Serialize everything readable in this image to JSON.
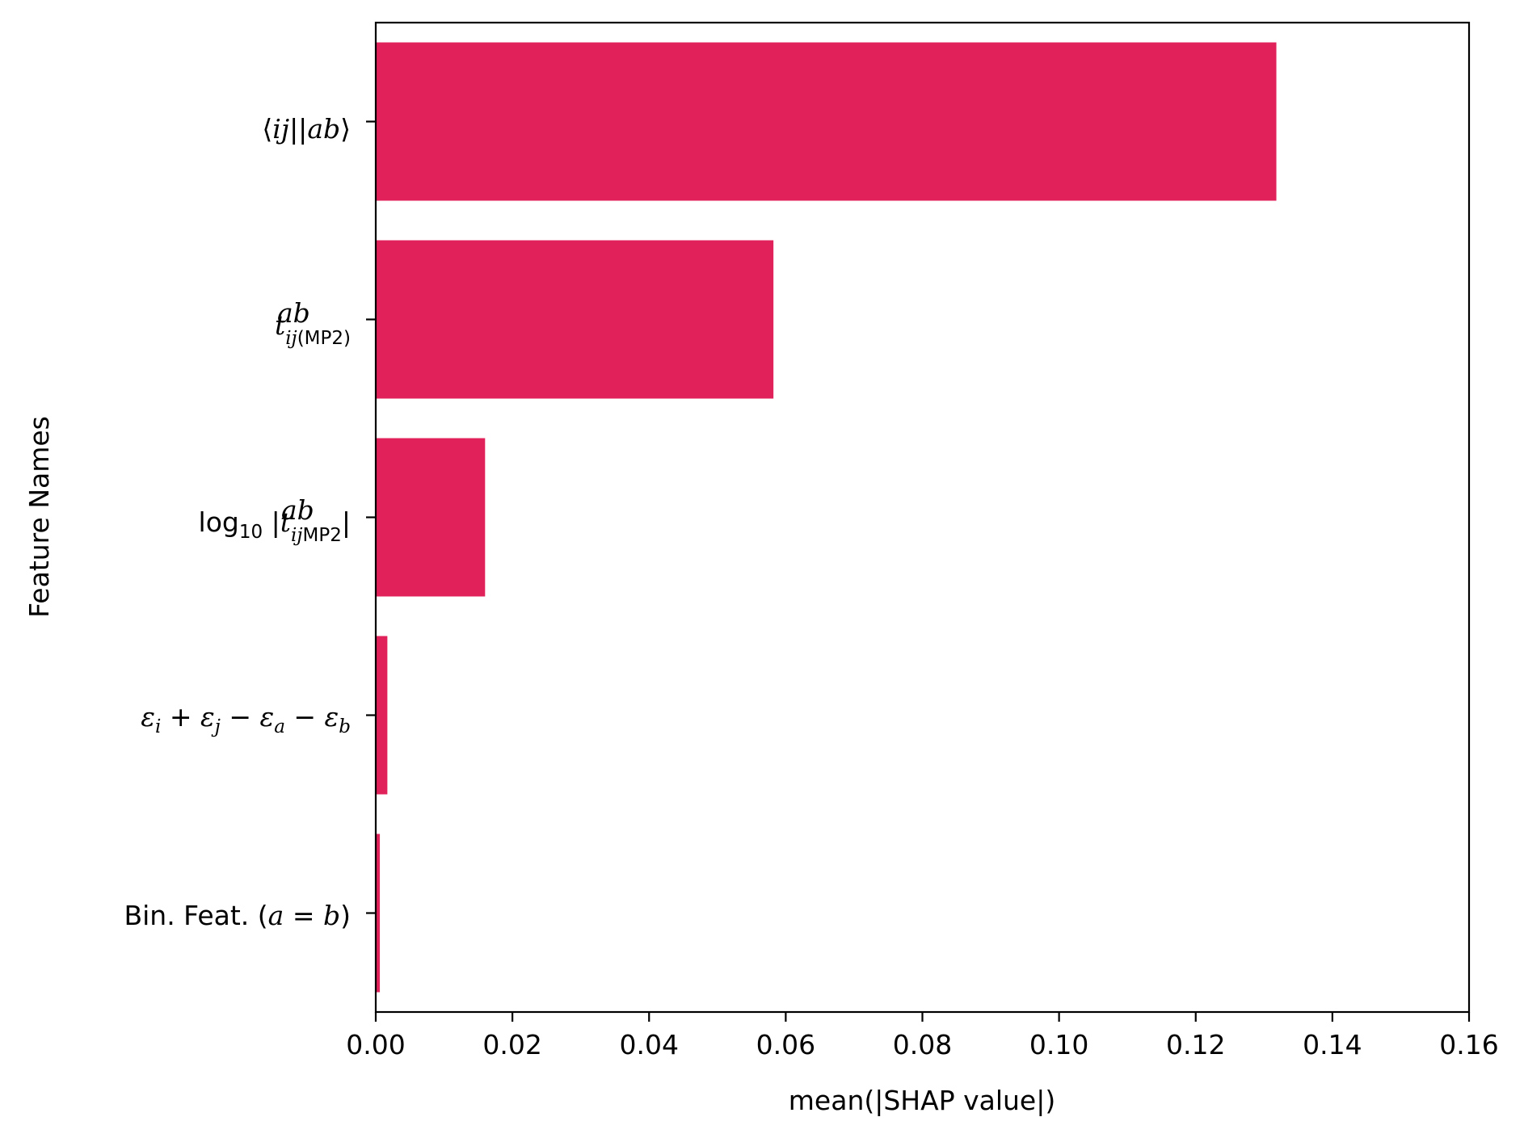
{
  "chart_data": {
    "type": "bar",
    "orientation": "horizontal",
    "categories": [
      "⟨ij||ab⟩",
      "t^{ab}_{ij(MP2)}",
      "log10 |t^{ab}_{ijMP2}|",
      "ε_i + ε_j − ε_a − ε_b",
      "Bin. Feat. (a = b)"
    ],
    "values": [
      0.1318,
      0.0582,
      0.016,
      0.0017,
      0.0006
    ],
    "xlabel": "mean(|SHAP value|)",
    "ylabel": "Feature Names",
    "xlim": [
      0.0,
      0.16
    ],
    "xticks": [
      "0.00",
      "0.02",
      "0.04",
      "0.06",
      "0.08",
      "0.10",
      "0.12",
      "0.14",
      "0.16"
    ],
    "grid": false,
    "bar_color": "#e0215a",
    "axis_color": "#000000"
  }
}
